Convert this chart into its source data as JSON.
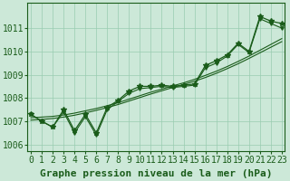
{
  "xlabel": "Graphe pression niveau de la mer (hPa)",
  "x_values": [
    0,
    1,
    2,
    3,
    4,
    5,
    6,
    7,
    8,
    9,
    10,
    11,
    12,
    13,
    14,
    15,
    16,
    17,
    18,
    19,
    20,
    21,
    22,
    23
  ],
  "pressure_main": [
    1007.3,
    1007.0,
    1006.75,
    1007.5,
    1006.6,
    1007.3,
    1006.5,
    1007.6,
    1007.9,
    1008.3,
    1008.5,
    1008.5,
    1008.55,
    1008.5,
    1008.55,
    1008.6,
    1009.4,
    1009.6,
    1009.85,
    1010.35,
    1010.0,
    1011.5,
    1011.3,
    1011.2
  ],
  "pressure_zigzag": [
    1007.3,
    1007.0,
    1006.75,
    1007.4,
    1006.5,
    1007.2,
    1006.4,
    1007.5,
    1007.85,
    1008.2,
    1008.4,
    1008.45,
    1008.5,
    1008.45,
    1008.5,
    1008.55,
    1009.3,
    1009.5,
    1009.8,
    1010.3,
    1009.95,
    1011.4,
    1011.2,
    1011.0
  ],
  "pressure_trend1": [
    1007.15,
    1007.18,
    1007.21,
    1007.27,
    1007.35,
    1007.45,
    1007.55,
    1007.67,
    1007.8,
    1007.95,
    1008.1,
    1008.25,
    1008.38,
    1008.52,
    1008.65,
    1008.8,
    1008.97,
    1009.15,
    1009.35,
    1009.57,
    1009.8,
    1010.05,
    1010.3,
    1010.55
  ],
  "pressure_trend2": [
    1007.05,
    1007.08,
    1007.12,
    1007.18,
    1007.26,
    1007.36,
    1007.47,
    1007.59,
    1007.72,
    1007.87,
    1008.02,
    1008.17,
    1008.31,
    1008.45,
    1008.58,
    1008.72,
    1008.88,
    1009.06,
    1009.26,
    1009.47,
    1009.7,
    1009.94,
    1010.18,
    1010.42
  ],
  "background_color": "#cce8d8",
  "grid_color": "#99ccb0",
  "line_color": "#1a5c1a",
  "marker_color": "#1a5c1a",
  "ylim_min": 1005.7,
  "ylim_max": 1012.1,
  "yticks": [
    1006,
    1007,
    1008,
    1009,
    1010,
    1011
  ],
  "text_color": "#1a5c1a",
  "xlabel_fontsize": 8,
  "tick_fontsize": 7
}
